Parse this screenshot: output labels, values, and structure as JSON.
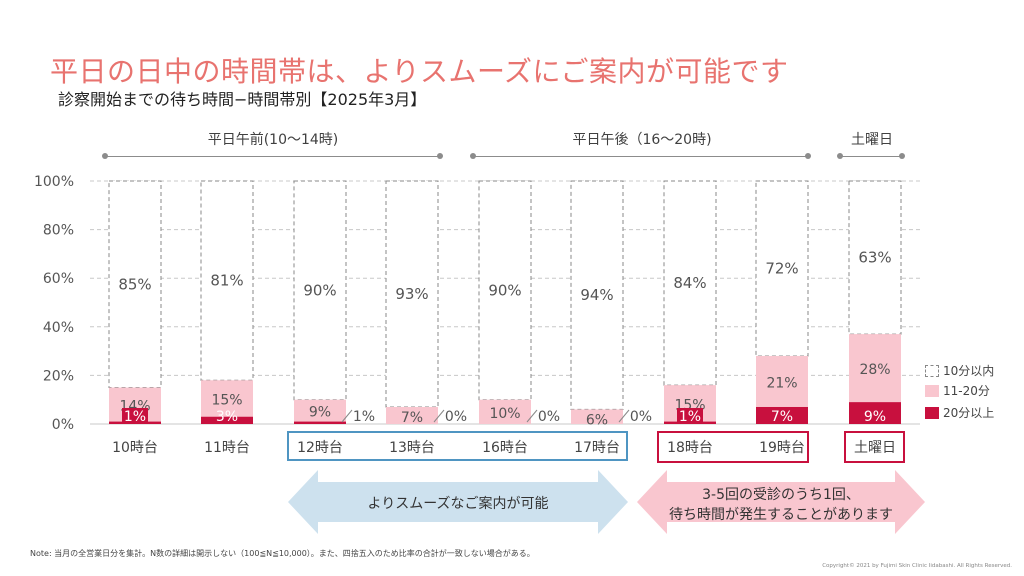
{
  "title": "平日の日中の時間帯は、よりスムーズにご案内が可能です",
  "subtitle": "診察開始までの待ち時間−時間帯別【2025年3月】",
  "groups": {
    "morning": "平日午前(10〜14時)",
    "afternoon": "平日午後（16〜20時)",
    "saturday": "土曜日"
  },
  "arrows": {
    "smooth": "よりスムーズなご案内が可能",
    "wait_line1": "3-5回の受診のうち1回、",
    "wait_line2": "待ち時間が発生することがあります"
  },
  "legend": {
    "within10": "10分以内",
    "m11_20": "11-20分",
    "over20": "20分以上"
  },
  "note": "Note: 当月の全営業日分を集計。N数の詳細は開示しない（100≦N≦10,000）。また、四捨五入のため比率の合計が一致しない場合がある。",
  "copyright": "Copyright© 2021 by Fujimi Skin Clinic Iidabashi. All Rights Reserved.",
  "colors": {
    "over20": "#c8103e",
    "m11_20": "#f9c6cf",
    "within10": "#ffffff",
    "title": "#e8736f",
    "blue_highlight": "#4f95c2",
    "red_highlight": "#c8103e",
    "blue_arrow": "#cde1ee",
    "pink_arrow": "#f9c6cf"
  },
  "chart_data": {
    "type": "bar",
    "stacked": true,
    "categories": [
      "10時台",
      "11時台",
      "12時台",
      "13時台",
      "16時台",
      "17時台",
      "18時台",
      "19時台",
      "土曜日"
    ],
    "series": [
      {
        "name": "20分以上",
        "values": [
          1,
          3,
          1,
          0,
          0,
          0,
          1,
          7,
          9
        ],
        "labels": [
          "1%",
          "3%",
          "1%",
          "0%",
          "0%",
          "0%",
          "1%",
          "7%",
          "9%"
        ]
      },
      {
        "name": "11-20分",
        "values": [
          14,
          15,
          9,
          7,
          10,
          6,
          15,
          21,
          28
        ],
        "labels": [
          "14%",
          "15%",
          "9%",
          "7%",
          "10%",
          "6%",
          "15%",
          "21%",
          "28%"
        ]
      },
      {
        "name": "10分以内",
        "values": [
          85,
          81,
          90,
          93,
          90,
          94,
          84,
          72,
          63
        ],
        "labels": [
          "85%",
          "81%",
          "90%",
          "93%",
          "90%",
          "94%",
          "84%",
          "72%",
          "63%"
        ]
      }
    ],
    "yticks": [
      "0%",
      "20%",
      "40%",
      "60%",
      "80%",
      "100%"
    ],
    "ylim": [
      0,
      100
    ],
    "grid": true,
    "legend_position": "right"
  }
}
